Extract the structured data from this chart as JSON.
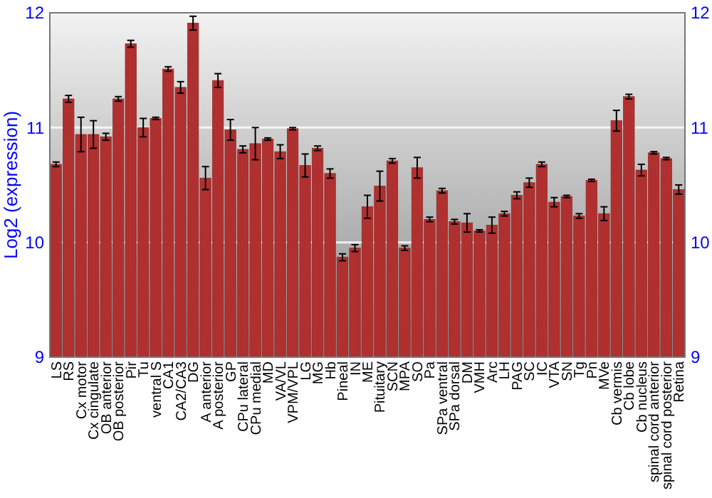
{
  "chart_data": {
    "type": "bar",
    "ylabel": "Log2 (expression)",
    "categories": [
      "LS",
      "RS",
      "Cx motor",
      "Cx cingulate",
      "OB anterior",
      "OB posterior",
      "Pir",
      "Tu",
      "ventral S",
      "CA1",
      "CA2/CA3",
      "DG",
      "A anterior",
      "A posterior",
      "GP",
      "CPu lateral",
      "CPu medial",
      "MD",
      "VA/VL",
      "VPM/VPL",
      "LG",
      "MG",
      "Hb",
      "Pineal",
      "IN",
      "ME",
      "Pituitary",
      "SCN",
      "MPA",
      "SO",
      "Pa",
      "SPa ventral",
      "SPa dorsal",
      "DM",
      "VMH",
      "Arc",
      "LH",
      "PAG",
      "SC",
      "IC",
      "VTA",
      "SN",
      "Tg",
      "Pn",
      "MVe",
      "Cb vermis",
      "Cb lobe",
      "Cb nucleus",
      "spinal cord anterior",
      "spinal cord posterior",
      "Retina"
    ],
    "values": [
      10.68,
      11.25,
      10.94,
      10.94,
      10.92,
      11.25,
      11.73,
      11.0,
      11.08,
      11.51,
      11.35,
      11.91,
      10.56,
      11.41,
      10.98,
      10.81,
      10.86,
      10.9,
      10.79,
      10.99,
      10.67,
      10.82,
      10.6,
      9.87,
      9.95,
      10.31,
      10.49,
      10.71,
      9.95,
      10.65,
      10.2,
      10.45,
      10.18,
      10.17,
      10.1,
      10.15,
      10.25,
      10.41,
      10.52,
      10.68,
      10.35,
      10.4,
      10.23,
      10.54,
      10.25,
      11.06,
      11.27,
      10.63,
      10.78,
      10.73,
      10.46
    ],
    "errors": [
      0.02,
      0.03,
      0.15,
      0.12,
      0.03,
      0.02,
      0.03,
      0.08,
      0.01,
      0.02,
      0.05,
      0.06,
      0.1,
      0.06,
      0.09,
      0.03,
      0.14,
      0.01,
      0.06,
      0.01,
      0.1,
      0.02,
      0.04,
      0.03,
      0.03,
      0.1,
      0.13,
      0.02,
      0.02,
      0.09,
      0.02,
      0.02,
      0.02,
      0.08,
      0.01,
      0.07,
      0.02,
      0.03,
      0.04,
      0.02,
      0.04,
      0.01,
      0.02,
      0.01,
      0.06,
      0.09,
      0.02,
      0.05,
      0.01,
      0.01,
      0.04
    ],
    "color": "#b03030",
    "ylim": [
      9,
      12
    ],
    "yticks": [
      9,
      10,
      11,
      12
    ],
    "y2lim": [
      9,
      12
    ],
    "y2ticks": [
      9,
      10,
      11,
      12
    ],
    "grid": "y"
  }
}
